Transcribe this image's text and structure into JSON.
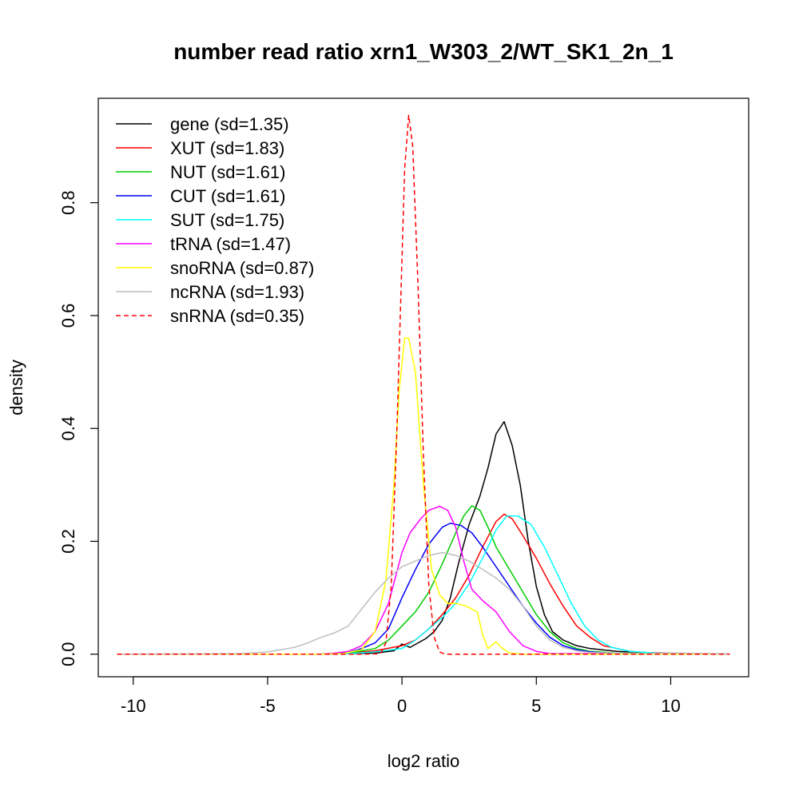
{
  "chart_data": {
    "type": "line",
    "title": "number read ratio xrn1_W303_2/WT_SK1_2n_1",
    "xlabel": "log2 ratio",
    "ylabel": "density",
    "xlim": [
      -10.6,
      12.2
    ],
    "ylim": [
      0,
      0.95
    ],
    "x_ticks": [
      -10,
      -5,
      0,
      5,
      10
    ],
    "x_tick_labels": [
      "-10",
      "-5",
      "0",
      "5",
      "10"
    ],
    "y_ticks": [
      0.0,
      0.2,
      0.4,
      0.6,
      0.8
    ],
    "y_tick_labels": [
      "0.0",
      "0.2",
      "0.4",
      "0.6",
      "0.8"
    ],
    "grid": false,
    "legend_position": "top-left",
    "series": [
      {
        "name": "gene (sd=1.35)",
        "color": "#000000",
        "dash": "solid",
        "points": [
          [
            -10.6,
            0
          ],
          [
            -3,
            0
          ],
          [
            -2,
            0.001
          ],
          [
            -1,
            0.002
          ],
          [
            -0.3,
            0.006
          ],
          [
            0,
            0.018
          ],
          [
            0.3,
            0.012
          ],
          [
            0.6,
            0.02
          ],
          [
            0.9,
            0.028
          ],
          [
            1.2,
            0.04
          ],
          [
            1.5,
            0.06
          ],
          [
            1.8,
            0.1
          ],
          [
            2.1,
            0.16
          ],
          [
            2.5,
            0.23
          ],
          [
            2.9,
            0.28
          ],
          [
            3.2,
            0.33
          ],
          [
            3.5,
            0.39
          ],
          [
            3.8,
            0.412
          ],
          [
            4.1,
            0.37
          ],
          [
            4.4,
            0.3
          ],
          [
            4.7,
            0.2
          ],
          [
            5.0,
            0.12
          ],
          [
            5.3,
            0.07
          ],
          [
            5.6,
            0.04
          ],
          [
            6.0,
            0.025
          ],
          [
            6.5,
            0.015
          ],
          [
            7.0,
            0.01
          ],
          [
            8.0,
            0.005
          ],
          [
            10,
            0.001
          ],
          [
            12.2,
            0
          ]
        ]
      },
      {
        "name": "XUT (sd=1.83)",
        "color": "#ff0000",
        "dash": "solid",
        "points": [
          [
            -10.6,
            0
          ],
          [
            -3,
            0
          ],
          [
            -2,
            0.002
          ],
          [
            -1,
            0.006
          ],
          [
            0,
            0.015
          ],
          [
            0.5,
            0.025
          ],
          [
            1,
            0.045
          ],
          [
            1.5,
            0.07
          ],
          [
            2,
            0.1
          ],
          [
            2.5,
            0.14
          ],
          [
            3,
            0.19
          ],
          [
            3.5,
            0.235
          ],
          [
            3.8,
            0.248
          ],
          [
            4.1,
            0.24
          ],
          [
            4.5,
            0.21
          ],
          [
            5,
            0.17
          ],
          [
            5.5,
            0.125
          ],
          [
            6,
            0.085
          ],
          [
            6.5,
            0.05
          ],
          [
            7,
            0.03
          ],
          [
            7.5,
            0.015
          ],
          [
            8,
            0.01
          ],
          [
            8.5,
            0.005
          ],
          [
            9,
            0.003
          ],
          [
            10,
            0.002
          ],
          [
            12.2,
            0
          ]
        ]
      },
      {
        "name": "NUT (sd=1.61)",
        "color": "#00cd00",
        "dash": "solid",
        "points": [
          [
            -10.6,
            0
          ],
          [
            -3,
            0
          ],
          [
            -2,
            0.002
          ],
          [
            -1,
            0.01
          ],
          [
            -0.5,
            0.025
          ],
          [
            0,
            0.05
          ],
          [
            0.5,
            0.075
          ],
          [
            1,
            0.11
          ],
          [
            1.5,
            0.16
          ],
          [
            2,
            0.215
          ],
          [
            2.3,
            0.245
          ],
          [
            2.6,
            0.263
          ],
          [
            2.9,
            0.255
          ],
          [
            3.2,
            0.225
          ],
          [
            3.5,
            0.19
          ],
          [
            4,
            0.15
          ],
          [
            4.5,
            0.11
          ],
          [
            5,
            0.07
          ],
          [
            5.5,
            0.04
          ],
          [
            6,
            0.02
          ],
          [
            6.5,
            0.01
          ],
          [
            7,
            0.005
          ],
          [
            8,
            0.002
          ],
          [
            12.2,
            0
          ]
        ]
      },
      {
        "name": "CUT (sd=1.61)",
        "color": "#0000ff",
        "dash": "solid",
        "points": [
          [
            -10.6,
            0
          ],
          [
            -3,
            0
          ],
          [
            -2,
            0.003
          ],
          [
            -1.5,
            0.01
          ],
          [
            -1,
            0.02
          ],
          [
            -0.5,
            0.045
          ],
          [
            0,
            0.1
          ],
          [
            0.5,
            0.15
          ],
          [
            1,
            0.195
          ],
          [
            1.5,
            0.225
          ],
          [
            1.8,
            0.232
          ],
          [
            2.2,
            0.228
          ],
          [
            2.6,
            0.215
          ],
          [
            3,
            0.19
          ],
          [
            3.5,
            0.155
          ],
          [
            4,
            0.12
          ],
          [
            4.5,
            0.085
          ],
          [
            5,
            0.055
          ],
          [
            5.5,
            0.03
          ],
          [
            6,
            0.015
          ],
          [
            6.5,
            0.008
          ],
          [
            7,
            0.004
          ],
          [
            8,
            0.001
          ],
          [
            12.2,
            0
          ]
        ]
      },
      {
        "name": "SUT (sd=1.75)",
        "color": "#00ffff",
        "dash": "solid",
        "points": [
          [
            -10.6,
            0
          ],
          [
            -3,
            0
          ],
          [
            -2,
            0.001
          ],
          [
            -1,
            0.004
          ],
          [
            0,
            0.01
          ],
          [
            0.5,
            0.025
          ],
          [
            1,
            0.045
          ],
          [
            1.5,
            0.065
          ],
          [
            2,
            0.09
          ],
          [
            2.5,
            0.125
          ],
          [
            3,
            0.17
          ],
          [
            3.5,
            0.22
          ],
          [
            3.9,
            0.245
          ],
          [
            4.3,
            0.245
          ],
          [
            4.8,
            0.23
          ],
          [
            5.3,
            0.19
          ],
          [
            5.8,
            0.14
          ],
          [
            6.3,
            0.09
          ],
          [
            6.8,
            0.05
          ],
          [
            7.3,
            0.025
          ],
          [
            7.8,
            0.012
          ],
          [
            8.5,
            0.005
          ],
          [
            9.5,
            0.002
          ],
          [
            12.2,
            0
          ]
        ]
      },
      {
        "name": "tRNA (sd=1.47)",
        "color": "#ff00ff",
        "dash": "solid",
        "points": [
          [
            -10.6,
            0
          ],
          [
            -3,
            0
          ],
          [
            -2.5,
            0.002
          ],
          [
            -2,
            0.005
          ],
          [
            -1.5,
            0.015
          ],
          [
            -1,
            0.04
          ],
          [
            -0.5,
            0.09
          ],
          [
            0,
            0.18
          ],
          [
            0.3,
            0.215
          ],
          [
            0.7,
            0.24
          ],
          [
            1,
            0.255
          ],
          [
            1.4,
            0.262
          ],
          [
            1.7,
            0.255
          ],
          [
            2,
            0.225
          ],
          [
            2.3,
            0.165
          ],
          [
            2.6,
            0.115
          ],
          [
            3,
            0.095
          ],
          [
            3.5,
            0.075
          ],
          [
            4,
            0.04
          ],
          [
            4.5,
            0.015
          ],
          [
            5,
            0.005
          ],
          [
            5.5,
            0.001
          ],
          [
            12.2,
            0
          ]
        ]
      },
      {
        "name": "snoRNA (sd=0.87)",
        "color": "#ffff00",
        "dash": "solid",
        "points": [
          [
            -10.6,
            0
          ],
          [
            -3,
            0
          ],
          [
            -2.2,
            0.001
          ],
          [
            -1.5,
            0.008
          ],
          [
            -1,
            0.04
          ],
          [
            -0.6,
            0.13
          ],
          [
            -0.3,
            0.3
          ],
          [
            -0.1,
            0.47
          ],
          [
            0.1,
            0.56
          ],
          [
            0.25,
            0.56
          ],
          [
            0.5,
            0.5
          ],
          [
            0.8,
            0.3
          ],
          [
            1.1,
            0.15
          ],
          [
            1.4,
            0.105
          ],
          [
            1.7,
            0.09
          ],
          [
            2.0,
            0.09
          ],
          [
            2.4,
            0.085
          ],
          [
            2.8,
            0.075
          ],
          [
            3.0,
            0.035
          ],
          [
            3.2,
            0.01
          ],
          [
            3.5,
            0.022
          ],
          [
            3.7,
            0.012
          ],
          [
            4.0,
            0.002
          ],
          [
            4.5,
            0
          ],
          [
            12.2,
            0
          ]
        ]
      },
      {
        "name": "ncRNA (sd=1.93)",
        "color": "#bebebe",
        "dash": "solid",
        "points": [
          [
            -10.6,
            0
          ],
          [
            -6,
            0.001
          ],
          [
            -5,
            0.004
          ],
          [
            -4,
            0.012
          ],
          [
            -3.5,
            0.02
          ],
          [
            -3,
            0.03
          ],
          [
            -2.5,
            0.038
          ],
          [
            -2,
            0.05
          ],
          [
            -1.5,
            0.08
          ],
          [
            -1,
            0.11
          ],
          [
            -0.5,
            0.135
          ],
          [
            0,
            0.155
          ],
          [
            0.5,
            0.165
          ],
          [
            1,
            0.175
          ],
          [
            1.5,
            0.18
          ],
          [
            2,
            0.175
          ],
          [
            2.5,
            0.165
          ],
          [
            3,
            0.15
          ],
          [
            3.5,
            0.135
          ],
          [
            4,
            0.115
          ],
          [
            4.5,
            0.085
          ],
          [
            5,
            0.05
          ],
          [
            5.5,
            0.025
          ],
          [
            6,
            0.012
          ],
          [
            6.5,
            0.006
          ],
          [
            7,
            0.003
          ],
          [
            8,
            0.002
          ],
          [
            9,
            0.001
          ],
          [
            10.2,
            0.002
          ],
          [
            12.2,
            0
          ]
        ]
      },
      {
        "name": "snRNA (sd=0.35)",
        "color": "#ff0000",
        "dash": "dashed",
        "points": [
          [
            -10.6,
            0
          ],
          [
            -1.5,
            0
          ],
          [
            -0.8,
            0.001
          ],
          [
            -0.6,
            0.02
          ],
          [
            -0.4,
            0.12
          ],
          [
            -0.2,
            0.38
          ],
          [
            0,
            0.7
          ],
          [
            0.1,
            0.86
          ],
          [
            0.25,
            0.955
          ],
          [
            0.4,
            0.9
          ],
          [
            0.6,
            0.65
          ],
          [
            0.8,
            0.35
          ],
          [
            1.0,
            0.12
          ],
          [
            1.2,
            0.03
          ],
          [
            1.4,
            0.004
          ],
          [
            1.6,
            0
          ],
          [
            12.2,
            0
          ]
        ]
      }
    ]
  }
}
